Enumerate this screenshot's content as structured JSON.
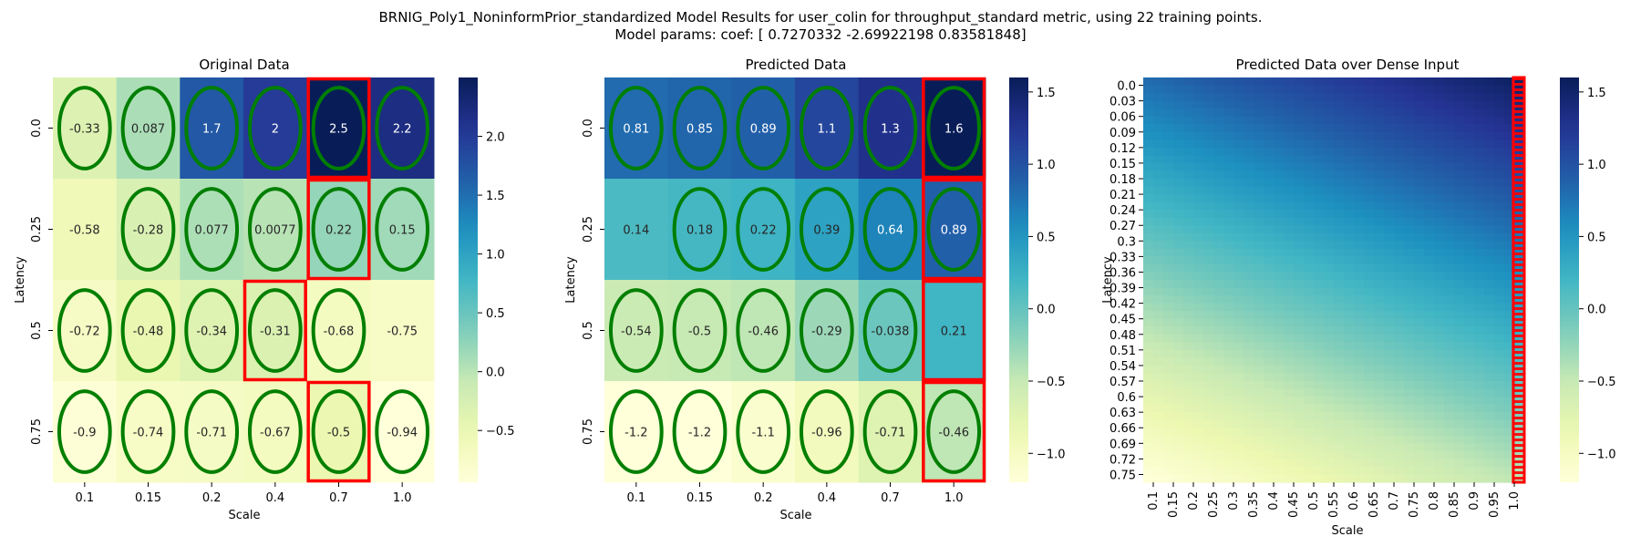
{
  "figure": {
    "title_line1": "BRNIG_Poly1_NoninformPrior_standardized Model Results for user_colin for throughput_standard metric, using 22 training points.",
    "title_line2": "Model params: coef: [ 0.7270332  -2.69922198  0.83581848]"
  },
  "chart_data": [
    {
      "type": "heatmap",
      "title": "Original Data",
      "xlabel": "Scale",
      "ylabel": "Latency",
      "x": [
        "0.1",
        "0.15",
        "0.2",
        "0.4",
        "0.7",
        "1.0"
      ],
      "y": [
        "0.0",
        "0.25",
        "0.5",
        "0.75"
      ],
      "values": [
        [
          -0.33,
          0.087,
          1.7,
          2,
          2.5,
          2.2
        ],
        [
          -0.58,
          -0.28,
          0.077,
          0.0077,
          0.22,
          0.15
        ],
        [
          -0.72,
          -0.48,
          -0.34,
          -0.31,
          -0.68,
          -0.75
        ],
        [
          -0.9,
          -0.74,
          -0.71,
          -0.67,
          -0.5,
          -0.94
        ]
      ],
      "annot": [
        [
          "-0.33",
          "0.087",
          "1.7",
          "2",
          "2.5",
          "2.2"
        ],
        [
          "-0.58",
          "-0.28",
          "0.077",
          "0.0077",
          "0.22",
          "0.15"
        ],
        [
          "-0.72",
          "-0.48",
          "-0.34",
          "-0.31",
          "-0.68",
          "-0.75"
        ],
        [
          "-0.9",
          "-0.74",
          "-0.71",
          "-0.67",
          "-0.5",
          "-0.94"
        ]
      ],
      "vmin": -0.94,
      "vmax": 2.5,
      "colorbar_ticks": [
        -0.5,
        0.0,
        0.5,
        1.0,
        1.5,
        2.0
      ],
      "colorbar_tick_labels": [
        "−0.5",
        "0.0",
        "0.5",
        "1.0",
        "1.5",
        "2.0"
      ],
      "training_points": [
        [
          true,
          true,
          true,
          true,
          true,
          true
        ],
        [
          false,
          true,
          true,
          true,
          true,
          true
        ],
        [
          true,
          true,
          true,
          true,
          true,
          false
        ],
        [
          true,
          true,
          true,
          true,
          true,
          true
        ]
      ],
      "highlighted_cells": [
        [
          0,
          4
        ],
        [
          1,
          4
        ],
        [
          2,
          3
        ],
        [
          3,
          4
        ]
      ]
    },
    {
      "type": "heatmap",
      "title": "Predicted Data",
      "xlabel": "Scale",
      "ylabel": "Latency",
      "x": [
        "0.1",
        "0.15",
        "0.2",
        "0.4",
        "0.7",
        "1.0"
      ],
      "y": [
        "0.0",
        "0.25",
        "0.5",
        "0.75"
      ],
      "values": [
        [
          0.81,
          0.85,
          0.89,
          1.1,
          1.3,
          1.6
        ],
        [
          0.14,
          0.18,
          0.22,
          0.39,
          0.64,
          0.89
        ],
        [
          -0.54,
          -0.5,
          -0.46,
          -0.29,
          -0.038,
          0.21
        ],
        [
          -1.2,
          -1.2,
          -1.1,
          -0.96,
          -0.71,
          -0.46
        ]
      ],
      "annot": [
        [
          "0.81",
          "0.85",
          "0.89",
          "1.1",
          "1.3",
          "1.6"
        ],
        [
          "0.14",
          "0.18",
          "0.22",
          "0.39",
          "0.64",
          "0.89"
        ],
        [
          "-0.54",
          "-0.5",
          "-0.46",
          "-0.29",
          "-0.038",
          "0.21"
        ],
        [
          "-1.2",
          "-1.2",
          "-1.1",
          "-0.96",
          "-0.71",
          "-0.46"
        ]
      ],
      "vmin": -1.2,
      "vmax": 1.6,
      "colorbar_ticks": [
        -1.0,
        -0.5,
        0.0,
        0.5,
        1.0,
        1.5
      ],
      "colorbar_tick_labels": [
        "−1.0",
        "−0.5",
        "0.0",
        "0.5",
        "1.0",
        "1.5"
      ],
      "training_points": [
        [
          true,
          true,
          true,
          true,
          true,
          true
        ],
        [
          false,
          true,
          true,
          true,
          true,
          true
        ],
        [
          true,
          true,
          true,
          true,
          true,
          false
        ],
        [
          true,
          true,
          true,
          true,
          true,
          true
        ]
      ],
      "highlighted_cells": [
        [
          0,
          5
        ],
        [
          1,
          5
        ],
        [
          2,
          5
        ],
        [
          3,
          5
        ]
      ]
    },
    {
      "type": "heatmap",
      "title": "Predicted Data over Dense Input",
      "xlabel": "Scale",
      "ylabel": "Latency",
      "x": [
        "0.1",
        "0.15",
        "0.2",
        "0.25",
        "0.3",
        "0.35",
        "0.4",
        "0.45",
        "0.5",
        "0.55",
        "0.6",
        "0.65",
        "0.7",
        "0.75",
        "0.8",
        "0.85",
        "0.9",
        "0.95",
        "1.0"
      ],
      "y": [
        "0.0",
        "0.03",
        "0.06",
        "0.09",
        "0.12",
        "0.15",
        "0.18",
        "0.21",
        "0.24",
        "0.27",
        "0.3",
        "0.33",
        "0.36",
        "0.39",
        "0.42",
        "0.45",
        "0.48",
        "0.51",
        "0.54",
        "0.57",
        "0.6",
        "0.63",
        "0.66",
        "0.69",
        "0.72",
        "0.75"
      ],
      "model": "coef[0] + coef[1]*latency + coef[2]*scale",
      "coef": [
        0.7270332,
        -2.69922198,
        0.83581848
      ],
      "vmin": -1.2,
      "vmax": 1.6,
      "colorbar_ticks": [
        -1.0,
        -0.5,
        0.0,
        0.5,
        1.0,
        1.5
      ],
      "colorbar_tick_labels": [
        "−1.0",
        "−0.5",
        "0.0",
        "0.5",
        "1.0",
        "1.5"
      ],
      "highlighted_column": "1.0"
    }
  ],
  "colormap": {
    "name": "YlGnBu",
    "stops": [
      "#ffffd9",
      "#edf8b1",
      "#c7e9b4",
      "#7fcdbb",
      "#41b6c4",
      "#1d91c0",
      "#225ea8",
      "#253494",
      "#081d58"
    ]
  },
  "colors": {
    "training_marker": "#007f00",
    "highlight": "#ff0000"
  }
}
